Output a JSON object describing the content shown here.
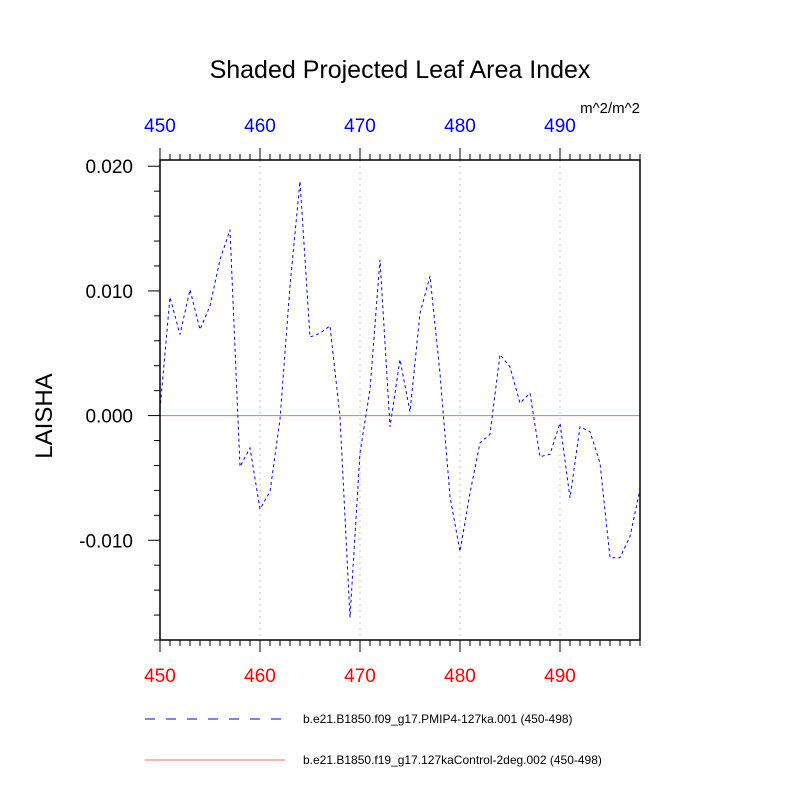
{
  "chart_data": {
    "type": "line",
    "title": "Shaded Projected Leaf Area Index",
    "units": "m^2/m^2",
    "ylabel": "LAISHA",
    "xlabel": "",
    "xlim": [
      450,
      498
    ],
    "ylim": [
      -0.018,
      0.0205
    ],
    "x_ticks": [
      450,
      460,
      470,
      480,
      490
    ],
    "x_tick_labels": [
      "450",
      "460",
      "470",
      "480",
      "490"
    ],
    "y_ticks": [
      0.02,
      0.01,
      0.0,
      -0.01
    ],
    "y_tick_labels": [
      "0.020",
      "0.010",
      "0.000",
      "-0.010"
    ],
    "x_gridlines": [
      460,
      470,
      480,
      490
    ],
    "colors": {
      "top_axis_labels": "#0000ff",
      "bottom_axis_labels": "#ff0000",
      "grid": "#d9d9d9"
    },
    "series": [
      {
        "name": "b.e21.B1850.f09_g17.PMIP4-127ka.001 (450-498)",
        "color": "#0000ff",
        "dash": "dashed",
        "x": [
          450,
          451,
          452,
          453,
          454,
          455,
          456,
          457,
          458,
          459,
          460,
          461,
          462,
          463,
          464,
          465,
          466,
          467,
          468,
          469,
          470,
          471,
          472,
          473,
          474,
          475,
          476,
          477,
          478,
          479,
          480,
          481,
          482,
          483,
          484,
          485,
          486,
          487,
          488,
          489,
          490,
          491,
          492,
          493,
          494,
          495,
          496,
          497,
          498
        ],
        "values": [
          0.0005,
          0.0095,
          0.0065,
          0.0101,
          0.0069,
          0.0088,
          0.0125,
          0.0149,
          -0.0041,
          -0.0026,
          -0.0075,
          -0.0061,
          -0.0003,
          0.0104,
          0.0188,
          0.0063,
          0.0066,
          0.0072,
          -0.0001,
          -0.0162,
          -0.003,
          0.0021,
          0.0125,
          -0.0009,
          0.0045,
          0.0003,
          0.0082,
          0.0112,
          0.0034,
          -0.0065,
          -0.0109,
          -0.0062,
          -0.0022,
          -0.0015,
          0.0049,
          0.0039,
          0.001,
          0.0018,
          -0.0033,
          -0.0031,
          -0.0006,
          -0.0066,
          -0.0009,
          -0.0013,
          -0.0038,
          -0.0114,
          -0.0114,
          -0.0097,
          -0.0059
        ]
      },
      {
        "name": "b.e21.B1850.f19_g17.127kaControl-2deg.002 (450-498)",
        "color": "#ff0000",
        "dash": "solid",
        "x": [
          450,
          498
        ],
        "values": [
          0.0,
          0.0
        ]
      }
    ]
  }
}
